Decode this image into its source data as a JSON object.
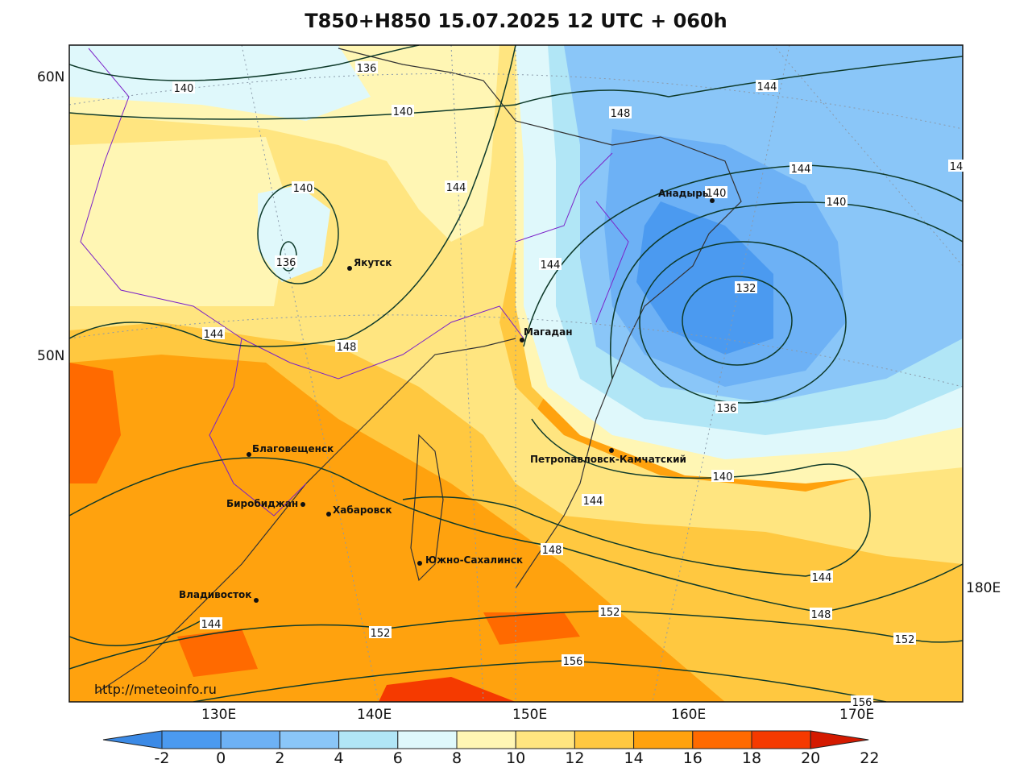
{
  "title": "T850+H850 15.07.2025 12 UTC + 060h",
  "watermark": "http://meteoinfo.ru",
  "lat_labels": [
    "60N",
    "50N"
  ],
  "lon_labels": [
    "130E",
    "140E",
    "150E",
    "160E",
    "170E",
    "180E"
  ],
  "cities": [
    "Анадырь",
    "Якутск",
    "Магадан",
    "Петропавловск-Камчатский",
    "Благовещенск",
    "Биробиджан",
    "Хабаровск",
    "Южно-Сахалинск",
    "Владивосток"
  ],
  "contour_labels": [
    "136",
    "140",
    "140",
    "140",
    "136",
    "144",
    "144",
    "144",
    "148",
    "148",
    "144",
    "144",
    "140",
    "140",
    "132",
    "136",
    "140",
    "144",
    "148",
    "144",
    "148",
    "152",
    "152",
    "156",
    "152",
    "156",
    "144",
    "14"
  ],
  "colorbar": {
    "ticks": [
      "-2",
      "0",
      "2",
      "4",
      "6",
      "8",
      "10",
      "12",
      "14",
      "16",
      "18",
      "20",
      "22"
    ],
    "colors": [
      "#3b8ae6",
      "#4b9af0",
      "#6db1f5",
      "#8ac6f8",
      "#b1e6f6",
      "#dff8fb",
      "#fff6b4",
      "#ffe580",
      "#ffc840",
      "#ffa20e",
      "#ff6a00",
      "#f53a00",
      "#d41a00"
    ]
  }
}
